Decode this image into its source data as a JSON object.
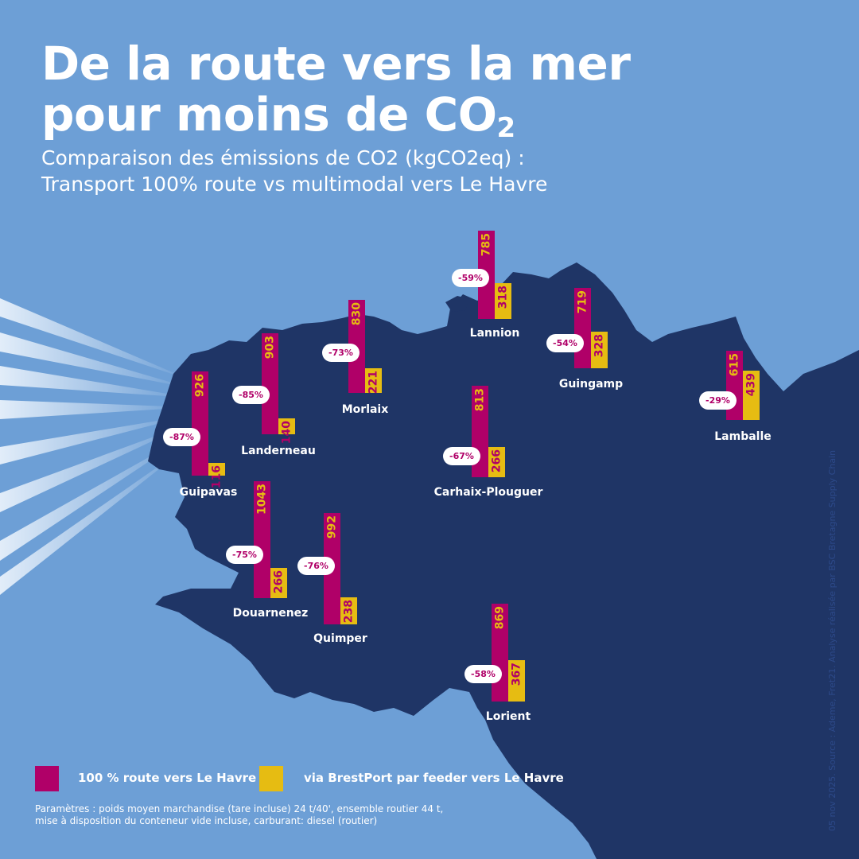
{
  "title_line1": "De la route vers la mer",
  "title_line2": "pour moins de CO",
  "title_sub": "2",
  "subtitle_line1": "Comparaison des émissions de CO2 (kgCO2eq) :",
  "subtitle_line2": "Transport 100% route vs multimodal vers Le Havre",
  "legend": {
    "road_label": "100 % route vers Le Havre",
    "sea_label": "via BrestPort par feeder vers Le Havre"
  },
  "params_line1": "Paramètres : poids moyen marchandise (tare incluse) 24 t/40', ensemble routier 44 t,",
  "params_line2": "mise à disposition du conteneur vide incluse, carburant: diesel (routier)",
  "source": "05 nov 2025. Source : Ademe, Fret21. Analyse réalisée par BSC Bretagne Supply Chain",
  "colors": {
    "background": "#6d9fd6",
    "land": "#1f3566",
    "road": "#b00068",
    "sea": "#e6bc12",
    "pill_text": "#b00068"
  },
  "chart_data": {
    "type": "bar",
    "title": "De la route vers la mer pour moins de CO2",
    "subtitle": "Comparaison des émissions de CO2 (kgCO2eq) : Transport 100% route vs multimodal vers Le Havre",
    "unit": "kgCO2eq",
    "categories": [
      "Guipavas",
      "Landerneau",
      "Morlaix",
      "Lannion",
      "Guingamp",
      "Lamballe",
      "Carhaix-Plouguer",
      "Douarnenez",
      "Quimper",
      "Lorient"
    ],
    "series": [
      {
        "name": "100 % route vers Le Havre",
        "values": [
          926,
          903,
          830,
          785,
          719,
          615,
          813,
          1043,
          992,
          869
        ]
      },
      {
        "name": "via BrestPort par feeder vers Le Havre",
        "values": [
          116,
          140,
          221,
          318,
          328,
          439,
          266,
          266,
          238,
          367
        ]
      }
    ],
    "reductions": [
      "-87%",
      "-85%",
      "-73%",
      "-59%",
      "-54%",
      "-29%",
      "-67%",
      "-75%",
      "-76%",
      "-58%"
    ],
    "legend": "bottom-left"
  }
}
